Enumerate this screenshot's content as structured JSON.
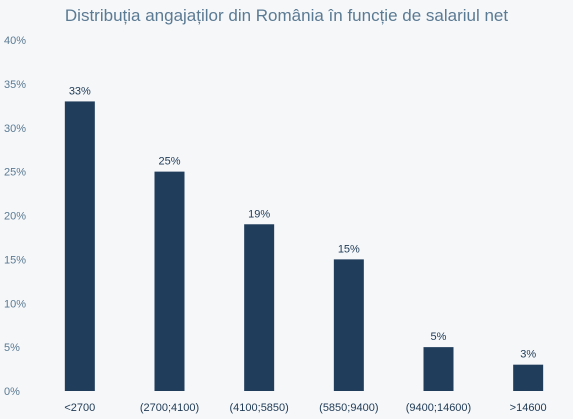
{
  "chart_data": {
    "type": "bar",
    "title": "Distribuția angajaților din România în funcție de salariul net",
    "xlabel": "",
    "ylabel": "",
    "categories": [
      "<2700",
      "(2700;4100)",
      "(4100;5850)",
      "(5850;9400)",
      "(9400;14600)",
      ">14600"
    ],
    "values": [
      33,
      25,
      19,
      15,
      5,
      3
    ],
    "data_labels": [
      "33%",
      "25%",
      "19%",
      "15%",
      "5%",
      "3%"
    ],
    "ylim": [
      0,
      40
    ],
    "yticks": [
      0,
      5,
      10,
      15,
      20,
      25,
      30,
      35,
      40
    ],
    "ytick_labels": [
      "0%",
      "5%",
      "10%",
      "15%",
      "20%",
      "25%",
      "30%",
      "35%",
      "40%"
    ],
    "grid": false,
    "legend": "none",
    "colors": {
      "bar": "#213d5c",
      "axis_text": "#5b7a93",
      "label_text": "#1f3a55",
      "background": "#f5f7f9"
    }
  }
}
